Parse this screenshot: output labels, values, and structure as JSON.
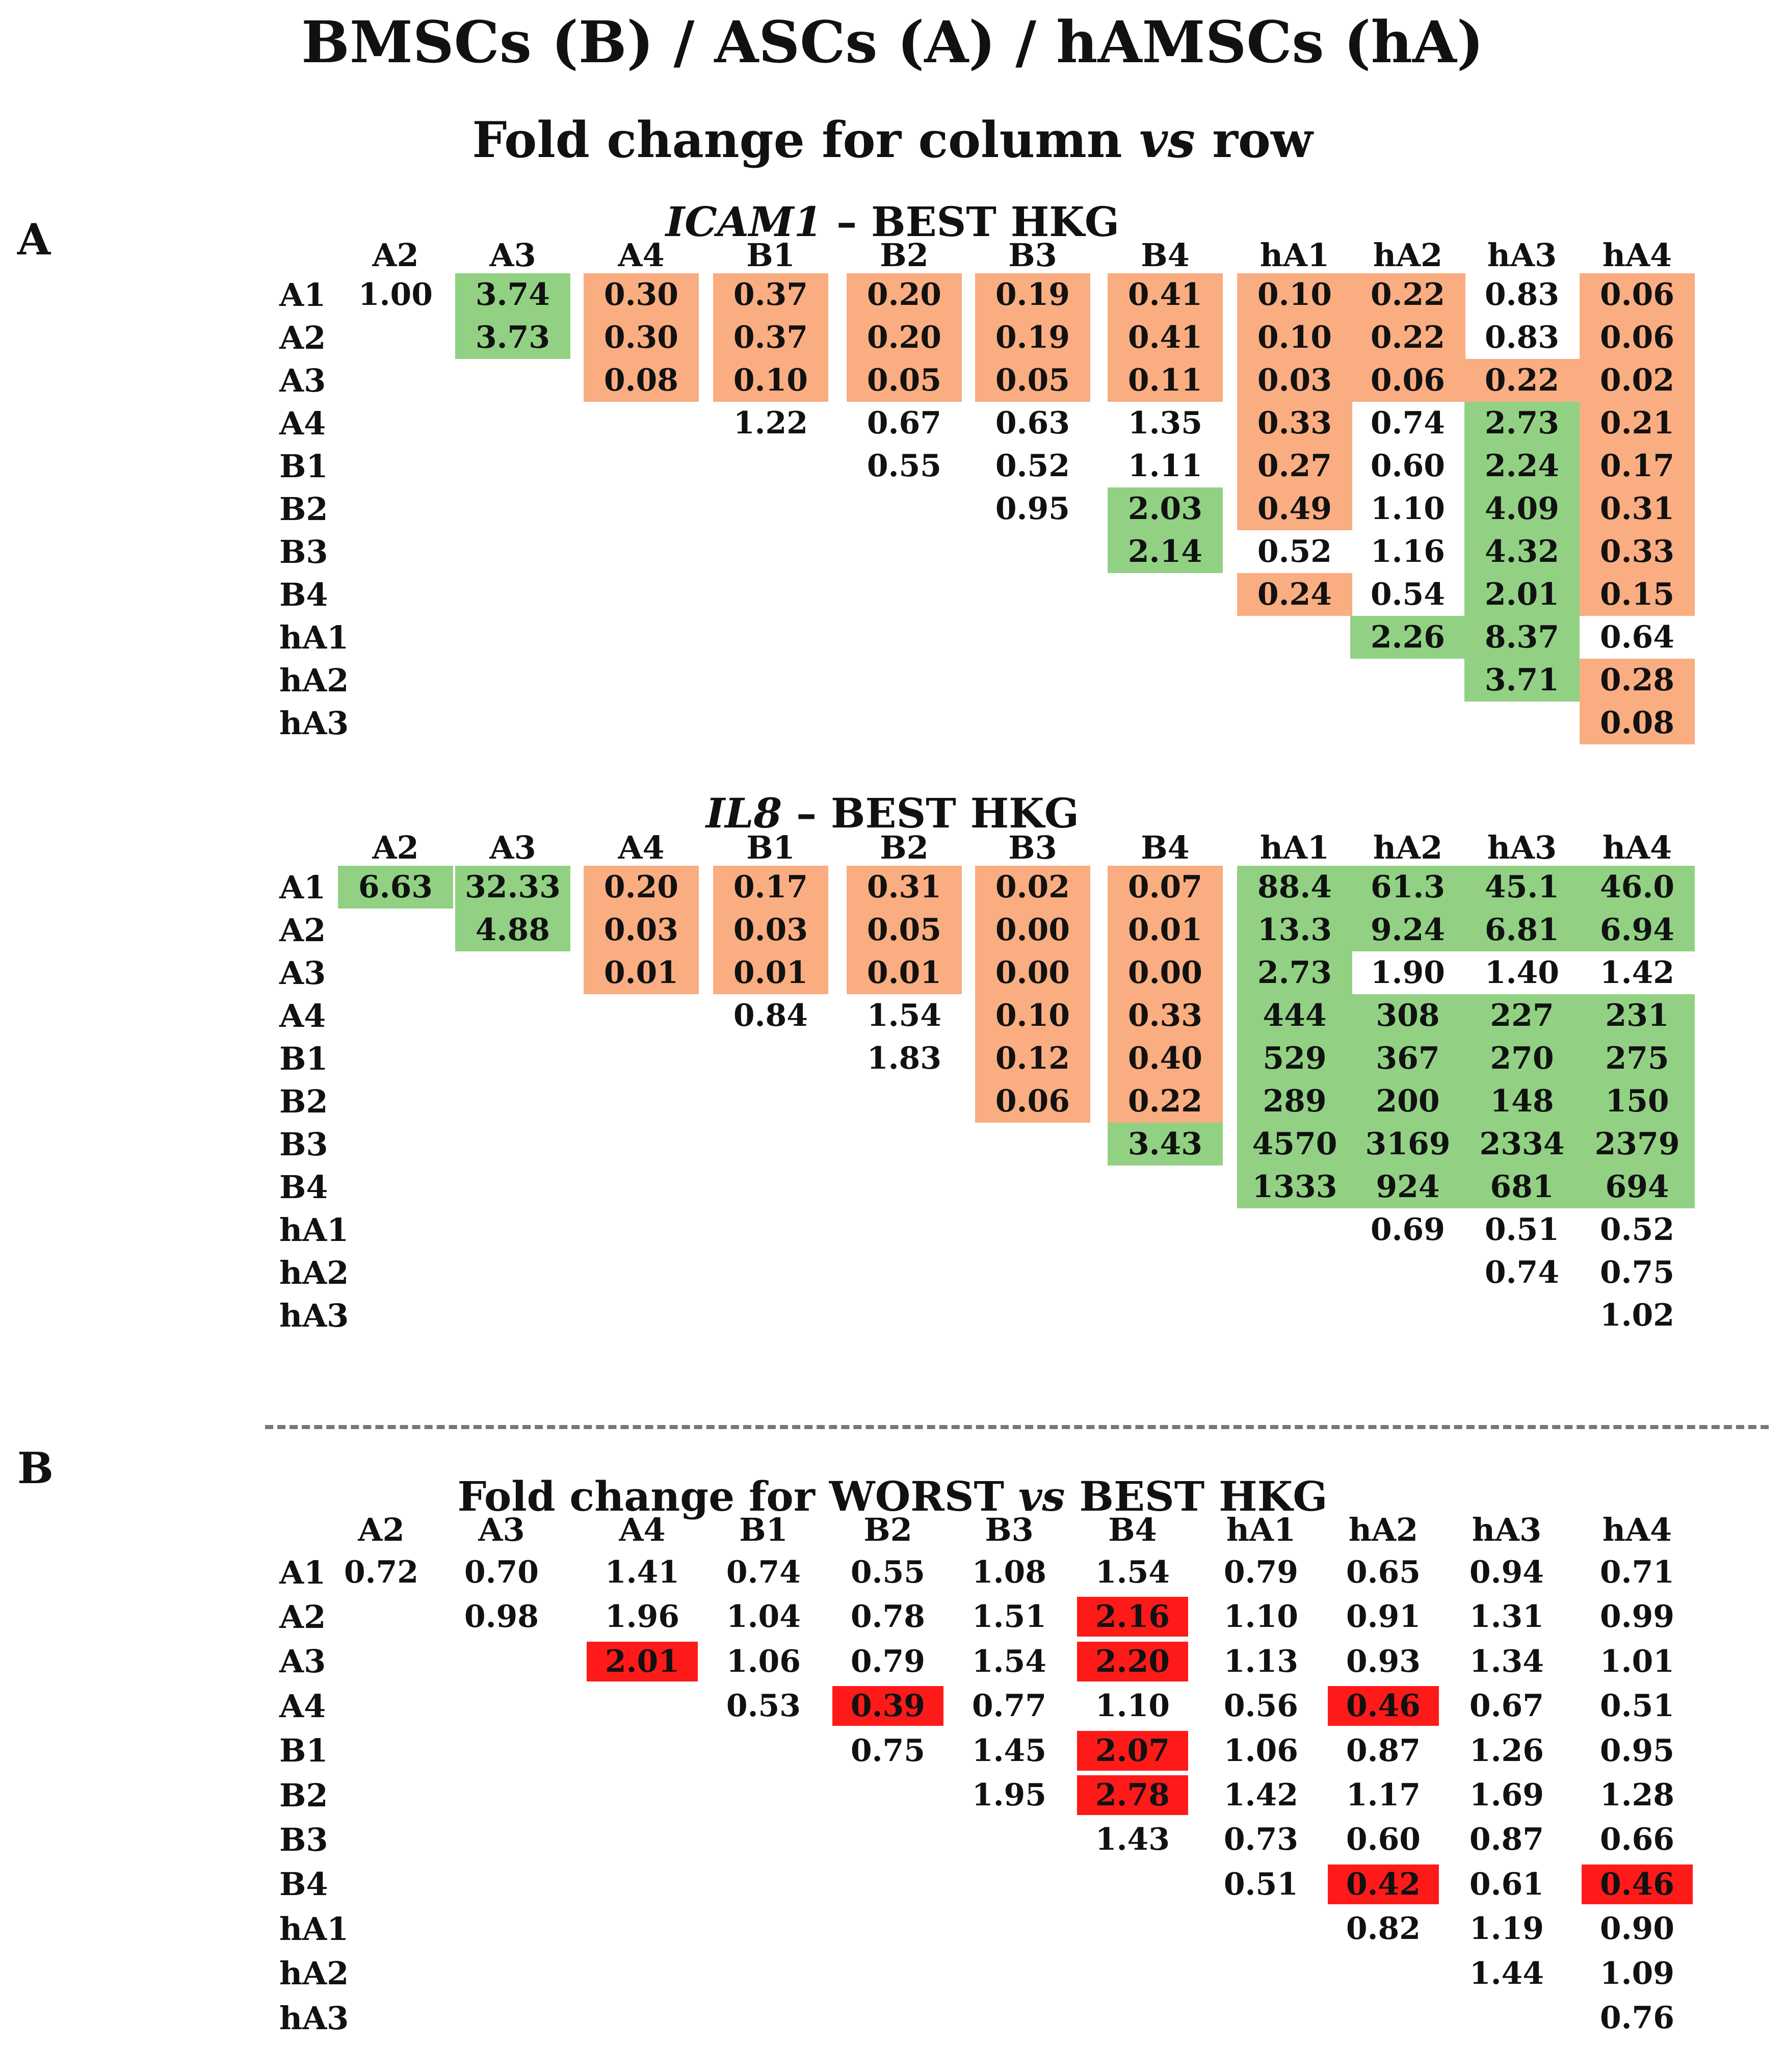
{
  "header": {
    "main_title": "BMSCs (B) / ASCs (A) / hAMSCs (hA)",
    "sub_title_pre": "Fold change for column ",
    "sub_title_vs": "vs",
    "sub_title_post": " row"
  },
  "panels": {
    "a": "A",
    "b": "B"
  },
  "colors": {
    "up": "#92d184",
    "down": "#f9ad81",
    "red": "#ff1a1a"
  },
  "chart_data": [
    {
      "type": "table",
      "title_gene": "ICAM1",
      "title_rest": " – BEST HKG",
      "columns": [
        "A2",
        "A3",
        "A4",
        "B1",
        "B2",
        "B3",
        "B4",
        "hA1",
        "hA2",
        "hA3",
        "hA4"
      ],
      "rows": [
        "A1",
        "A2",
        "A3",
        "A4",
        "B1",
        "B2",
        "B3",
        "B4",
        "hA1",
        "hA2",
        "hA3"
      ],
      "values": [
        [
          "1.00",
          "3.74",
          "0.30",
          "0.37",
          "0.20",
          "0.19",
          "0.41",
          "0.10",
          "0.22",
          "0.83",
          "0.06"
        ],
        [
          "",
          "3.73",
          "0.30",
          "0.37",
          "0.20",
          "0.19",
          "0.41",
          "0.10",
          "0.22",
          "0.83",
          "0.06"
        ],
        [
          "",
          "",
          "0.08",
          "0.10",
          "0.05",
          "0.05",
          "0.11",
          "0.03",
          "0.06",
          "0.22",
          "0.02"
        ],
        [
          "",
          "",
          "",
          "1.22",
          "0.67",
          "0.63",
          "1.35",
          "0.33",
          "0.74",
          "2.73",
          "0.21"
        ],
        [
          "",
          "",
          "",
          "",
          "0.55",
          "0.52",
          "1.11",
          "0.27",
          "0.60",
          "2.24",
          "0.17"
        ],
        [
          "",
          "",
          "",
          "",
          "",
          "0.95",
          "2.03",
          "0.49",
          "1.10",
          "4.09",
          "0.31"
        ],
        [
          "",
          "",
          "",
          "",
          "",
          "",
          "2.14",
          "0.52",
          "1.16",
          "4.32",
          "0.33"
        ],
        [
          "",
          "",
          "",
          "",
          "",
          "",
          "",
          "0.24",
          "0.54",
          "2.01",
          "0.15"
        ],
        [
          "",
          "",
          "",
          "",
          "",
          "",
          "",
          "",
          "2.26",
          "8.37",
          "0.64"
        ],
        [
          "",
          "",
          "",
          "",
          "",
          "",
          "",
          "",
          "",
          "3.71",
          "0.28"
        ],
        [
          "",
          "",
          "",
          "",
          "",
          "",
          "",
          "",
          "",
          "",
          "0.08"
        ]
      ],
      "highlight": [
        [
          "",
          "g",
          "o",
          "o",
          "o",
          "o",
          "o",
          "o",
          "o",
          "",
          "o"
        ],
        [
          "",
          "g",
          "o",
          "o",
          "o",
          "o",
          "o",
          "o",
          "o",
          "",
          "o"
        ],
        [
          "",
          "",
          "o",
          "o",
          "o",
          "o",
          "o",
          "o",
          "o",
          "o",
          "o"
        ],
        [
          "",
          "",
          "",
          "",
          "",
          "",
          "",
          "o",
          "",
          "g",
          "o"
        ],
        [
          "",
          "",
          "",
          "",
          "",
          "",
          "",
          "o",
          "",
          "g",
          "o"
        ],
        [
          "",
          "",
          "",
          "",
          "",
          "",
          "g",
          "o",
          "",
          "g",
          "o"
        ],
        [
          "",
          "",
          "",
          "",
          "",
          "",
          "g",
          "",
          "",
          "g",
          "o"
        ],
        [
          "",
          "",
          "",
          "",
          "",
          "",
          "",
          "o",
          "",
          "g",
          "o"
        ],
        [
          "",
          "",
          "",
          "",
          "",
          "",
          "",
          "",
          "g",
          "g",
          ""
        ],
        [
          "",
          "",
          "",
          "",
          "",
          "",
          "",
          "",
          "",
          "g",
          "o"
        ],
        [
          "",
          "",
          "",
          "",
          "",
          "",
          "",
          "",
          "",
          "",
          "o"
        ]
      ]
    },
    {
      "type": "table",
      "title_gene": "IL8",
      "title_rest": " – BEST HKG",
      "columns": [
        "A2",
        "A3",
        "A4",
        "B1",
        "B2",
        "B3",
        "B4",
        "hA1",
        "hA2",
        "hA3",
        "hA4"
      ],
      "rows": [
        "A1",
        "A2",
        "A3",
        "A4",
        "B1",
        "B2",
        "B3",
        "B4",
        "hA1",
        "hA2",
        "hA3"
      ],
      "values": [
        [
          "6.63",
          "32.33",
          "0.20",
          "0.17",
          "0.31",
          "0.02",
          "0.07",
          "88.4",
          "61.3",
          "45.1",
          "46.0"
        ],
        [
          "",
          "4.88",
          "0.03",
          "0.03",
          "0.05",
          "0.00",
          "0.01",
          "13.3",
          "9.24",
          "6.81",
          "6.94"
        ],
        [
          "",
          "",
          "0.01",
          "0.01",
          "0.01",
          "0.00",
          "0.00",
          "2.73",
          "1.90",
          "1.40",
          "1.42"
        ],
        [
          "",
          "",
          "",
          "0.84",
          "1.54",
          "0.10",
          "0.33",
          "444",
          "308",
          "227",
          "231"
        ],
        [
          "",
          "",
          "",
          "",
          "1.83",
          "0.12",
          "0.40",
          "529",
          "367",
          "270",
          "275"
        ],
        [
          "",
          "",
          "",
          "",
          "",
          "0.06",
          "0.22",
          "289",
          "200",
          "148",
          "150"
        ],
        [
          "",
          "",
          "",
          "",
          "",
          "",
          "3.43",
          "4570",
          "3169",
          "2334",
          "2379"
        ],
        [
          "",
          "",
          "",
          "",
          "",
          "",
          "",
          "1333",
          "924",
          "681",
          "694"
        ],
        [
          "",
          "",
          "",
          "",
          "",
          "",
          "",
          "",
          "0.69",
          "0.51",
          "0.52"
        ],
        [
          "",
          "",
          "",
          "",
          "",
          "",
          "",
          "",
          "",
          "0.74",
          "0.75"
        ],
        [
          "",
          "",
          "",
          "",
          "",
          "",
          "",
          "",
          "",
          "",
          "1.02"
        ]
      ],
      "highlight": [
        [
          "g",
          "g",
          "o",
          "o",
          "o",
          "o",
          "o",
          "g",
          "g",
          "g",
          "g"
        ],
        [
          "",
          "g",
          "o",
          "o",
          "o",
          "o",
          "o",
          "g",
          "g",
          "g",
          "g"
        ],
        [
          "",
          "",
          "o",
          "o",
          "o",
          "o",
          "o",
          "g",
          "",
          "",
          ""
        ],
        [
          "",
          "",
          "",
          "",
          "",
          "o",
          "o",
          "g",
          "g",
          "g",
          "g"
        ],
        [
          "",
          "",
          "",
          "",
          "",
          "o",
          "o",
          "g",
          "g",
          "g",
          "g"
        ],
        [
          "",
          "",
          "",
          "",
          "",
          "o",
          "o",
          "g",
          "g",
          "g",
          "g"
        ],
        [
          "",
          "",
          "",
          "",
          "",
          "",
          "g",
          "g",
          "g",
          "g",
          "g"
        ],
        [
          "",
          "",
          "",
          "",
          "",
          "",
          "",
          "g",
          "g",
          "g",
          "g"
        ],
        [
          "",
          "",
          "",
          "",
          "",
          "",
          "",
          "",
          "",
          "",
          ""
        ],
        [
          "",
          "",
          "",
          "",
          "",
          "",
          "",
          "",
          "",
          "",
          ""
        ],
        [
          "",
          "",
          "",
          "",
          "",
          "",
          "",
          "",
          "",
          "",
          ""
        ]
      ]
    },
    {
      "type": "table",
      "title_pre": "Fold change for WORST ",
      "title_vs": "vs",
      "title_post": " BEST HKG",
      "columns": [
        "A2",
        "A3",
        "A4",
        "B1",
        "B2",
        "B3",
        "B4",
        "hA1",
        "hA2",
        "hA3",
        "hA4"
      ],
      "rows": [
        "A1",
        "A2",
        "A3",
        "A4",
        "B1",
        "B2",
        "B3",
        "B4",
        "hA1",
        "hA2",
        "hA3"
      ],
      "values": [
        [
          "0.72",
          "0.70",
          "1.41",
          "0.74",
          "0.55",
          "1.08",
          "1.54",
          "0.79",
          "0.65",
          "0.94",
          "0.71"
        ],
        [
          "",
          "0.98",
          "1.96",
          "1.04",
          "0.78",
          "1.51",
          "2.16",
          "1.10",
          "0.91",
          "1.31",
          "0.99"
        ],
        [
          "",
          "",
          "2.01",
          "1.06",
          "0.79",
          "1.54",
          "2.20",
          "1.13",
          "0.93",
          "1.34",
          "1.01"
        ],
        [
          "",
          "",
          "",
          "0.53",
          "0.39",
          "0.77",
          "1.10",
          "0.56",
          "0.46",
          "0.67",
          "0.51"
        ],
        [
          "",
          "",
          "",
          "",
          "0.75",
          "1.45",
          "2.07",
          "1.06",
          "0.87",
          "1.26",
          "0.95"
        ],
        [
          "",
          "",
          "",
          "",
          "",
          "1.95",
          "2.78",
          "1.42",
          "1.17",
          "1.69",
          "1.28"
        ],
        [
          "",
          "",
          "",
          "",
          "",
          "",
          "1.43",
          "0.73",
          "0.60",
          "0.87",
          "0.66"
        ],
        [
          "",
          "",
          "",
          "",
          "",
          "",
          "",
          "0.51",
          "0.42",
          "0.61",
          "0.46"
        ],
        [
          "",
          "",
          "",
          "",
          "",
          "",
          "",
          "",
          "0.82",
          "1.19",
          "0.90"
        ],
        [
          "",
          "",
          "",
          "",
          "",
          "",
          "",
          "",
          "",
          "1.44",
          "1.09"
        ],
        [
          "",
          "",
          "",
          "",
          "",
          "",
          "",
          "",
          "",
          "",
          "0.76"
        ]
      ],
      "highlight": [
        [
          "",
          "",
          "",
          "",
          "",
          "",
          "",
          "",
          "",
          "",
          ""
        ],
        [
          "",
          "",
          "",
          "",
          "",
          "",
          "r",
          "",
          "",
          "",
          ""
        ],
        [
          "",
          "",
          "r",
          "",
          "",
          "",
          "r",
          "",
          "",
          "",
          ""
        ],
        [
          "",
          "",
          "",
          "",
          "r",
          "",
          "",
          "",
          "r",
          "",
          ""
        ],
        [
          "",
          "",
          "",
          "",
          "",
          "",
          "r",
          "",
          "",
          "",
          ""
        ],
        [
          "",
          "",
          "",
          "",
          "",
          "",
          "r",
          "",
          "",
          "",
          ""
        ],
        [
          "",
          "",
          "",
          "",
          "",
          "",
          "",
          "",
          "",
          "",
          ""
        ],
        [
          "",
          "",
          "",
          "",
          "",
          "",
          "",
          "",
          "r",
          "",
          "r"
        ],
        [
          "",
          "",
          "",
          "",
          "",
          "",
          "",
          "",
          "",
          "",
          ""
        ],
        [
          "",
          "",
          "",
          "",
          "",
          "",
          "",
          "",
          "",
          "",
          ""
        ],
        [
          "",
          "",
          "",
          "",
          "",
          "",
          "",
          "",
          "",
          "",
          ""
        ]
      ]
    }
  ]
}
